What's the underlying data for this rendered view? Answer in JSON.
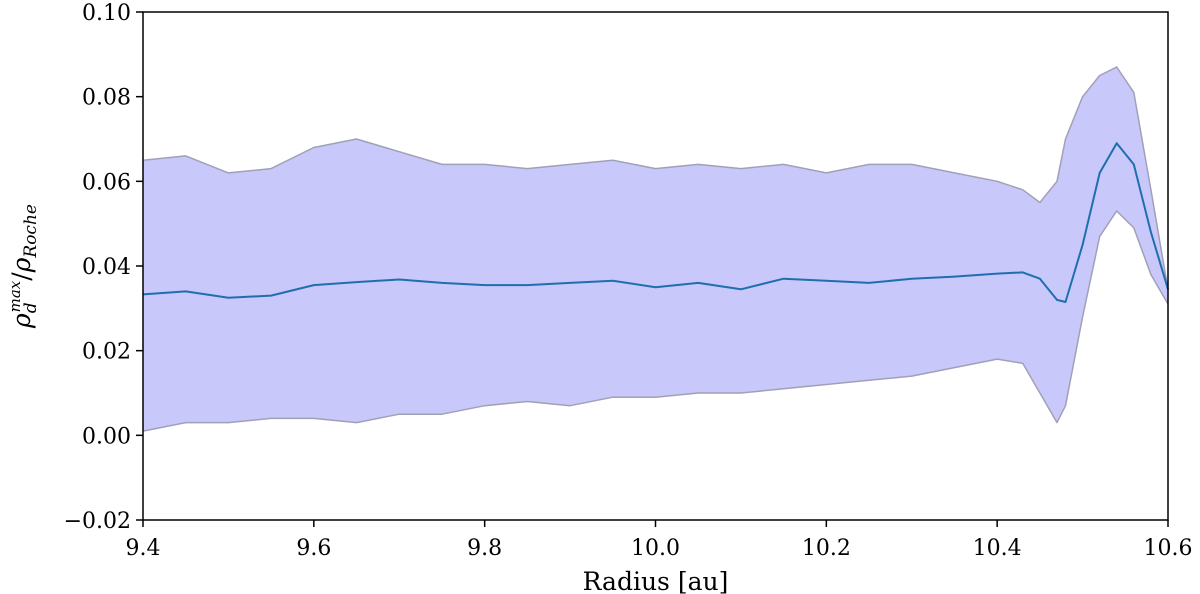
{
  "chart_data": {
    "type": "line",
    "xlabel": "Radius [au]",
    "ylabel_parts": {
      "base": "ρ",
      "sub": "d",
      "sup": "max",
      "slash": "/",
      "base2": "ρ",
      "sub2": "Roche"
    },
    "xlim": [
      9.4,
      10.6
    ],
    "ylim": [
      -0.02,
      0.1
    ],
    "x_ticks": [
      "9.4",
      "9.6",
      "9.8",
      "10.0",
      "10.2",
      "10.4",
      "10.6"
    ],
    "x_tick_values": [
      9.4,
      9.6,
      9.8,
      10.0,
      10.2,
      10.4,
      10.6
    ],
    "y_ticks": [
      "−0.02",
      "0.00",
      "0.02",
      "0.04",
      "0.06",
      "0.08",
      "0.10"
    ],
    "y_tick_values": [
      -0.02,
      0.0,
      0.02,
      0.04,
      0.06,
      0.08,
      0.1
    ],
    "grid": false,
    "colors": {
      "band_fill": "#c8c8fa",
      "band_edge": "#a0a0b8",
      "mean_line": "#1f6fae"
    },
    "x": [
      9.4,
      9.45,
      9.5,
      9.55,
      9.6,
      9.65,
      9.7,
      9.75,
      9.8,
      9.85,
      9.9,
      9.95,
      10.0,
      10.05,
      10.1,
      10.15,
      10.2,
      10.25,
      10.3,
      10.35,
      10.4,
      10.43,
      10.45,
      10.47,
      10.48,
      10.5,
      10.52,
      10.54,
      10.56,
      10.58,
      10.6
    ],
    "series": [
      {
        "role": "mean",
        "values": [
          0.0333,
          0.034,
          0.0325,
          0.033,
          0.0355,
          0.0362,
          0.0368,
          0.036,
          0.0355,
          0.0355,
          0.036,
          0.0365,
          0.035,
          0.036,
          0.0345,
          0.037,
          0.0365,
          0.036,
          0.037,
          0.0375,
          0.0382,
          0.0385,
          0.037,
          0.032,
          0.0315,
          0.045,
          0.062,
          0.069,
          0.064,
          0.048,
          0.0345
        ]
      },
      {
        "role": "upper",
        "values": [
          0.065,
          0.066,
          0.062,
          0.063,
          0.068,
          0.07,
          0.067,
          0.064,
          0.064,
          0.063,
          0.064,
          0.065,
          0.063,
          0.064,
          0.063,
          0.064,
          0.062,
          0.064,
          0.064,
          0.062,
          0.06,
          0.058,
          0.055,
          0.06,
          0.07,
          0.08,
          0.085,
          0.087,
          0.081,
          0.058,
          0.0345
        ]
      },
      {
        "role": "lower",
        "values": [
          0.001,
          0.003,
          0.003,
          0.004,
          0.004,
          0.003,
          0.005,
          0.005,
          0.007,
          0.008,
          0.007,
          0.009,
          0.009,
          0.01,
          0.01,
          0.011,
          0.012,
          0.013,
          0.014,
          0.016,
          0.018,
          0.017,
          0.01,
          0.003,
          0.007,
          0.028,
          0.047,
          0.053,
          0.049,
          0.038,
          0.031
        ]
      }
    ]
  }
}
